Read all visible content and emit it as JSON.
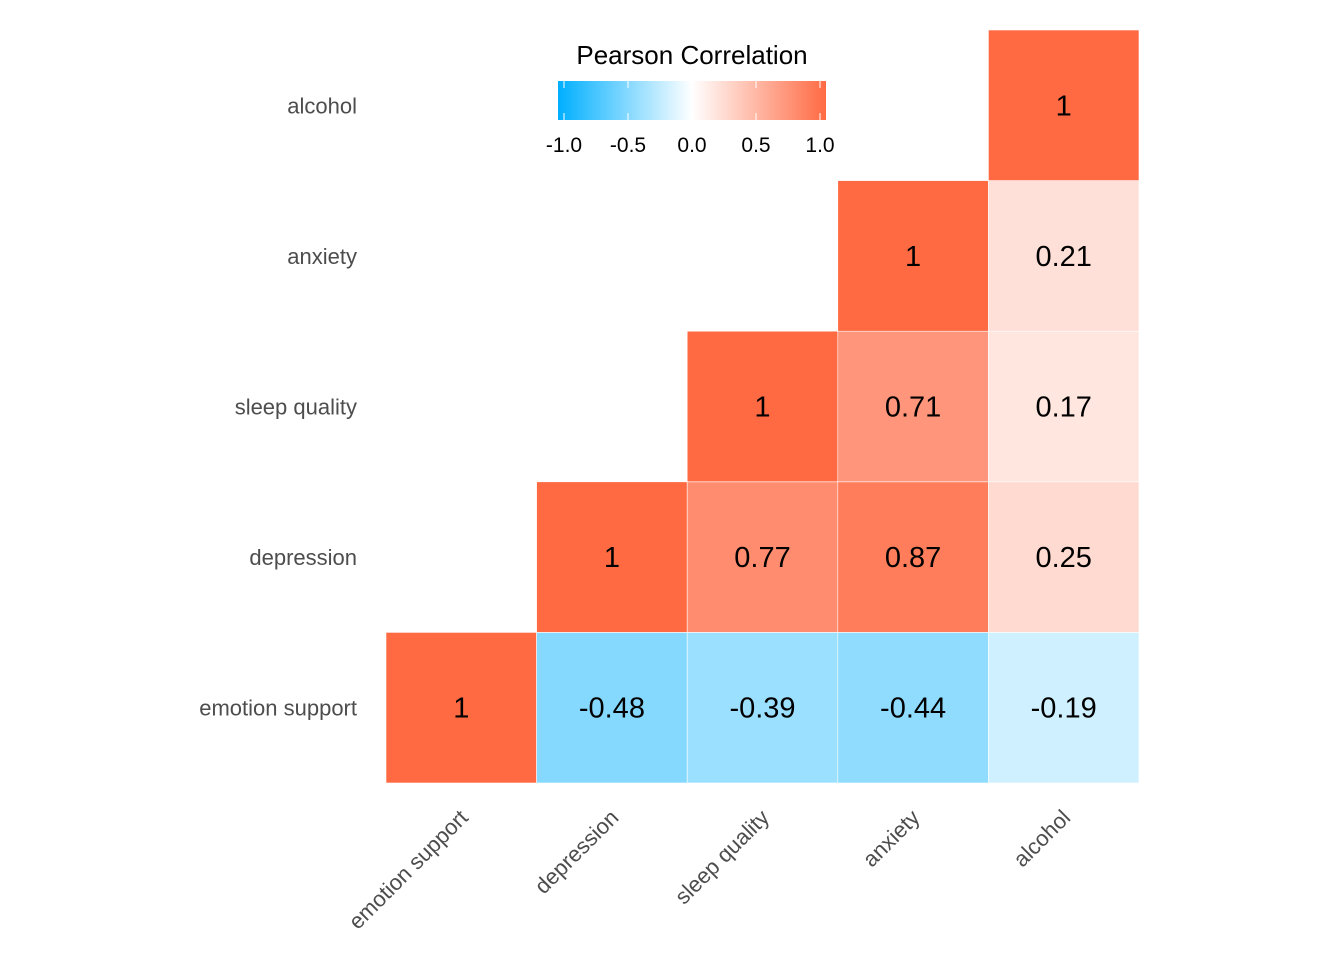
{
  "chart_data": {
    "type": "heatmap",
    "title": "",
    "variables": [
      "emotion support",
      "depression",
      "sleep quality",
      "anxiety",
      "alcohol"
    ],
    "matrix_triangle": "upper",
    "cells": [
      {
        "x": "emotion support",
        "y": "emotion support",
        "value": 1,
        "label": "1"
      },
      {
        "x": "depression",
        "y": "emotion support",
        "value": -0.48,
        "label": "-0.48"
      },
      {
        "x": "sleep quality",
        "y": "emotion support",
        "value": -0.39,
        "label": "-0.39"
      },
      {
        "x": "anxiety",
        "y": "emotion support",
        "value": -0.44,
        "label": "-0.44"
      },
      {
        "x": "alcohol",
        "y": "emotion support",
        "value": -0.19,
        "label": "-0.19"
      },
      {
        "x": "depression",
        "y": "depression",
        "value": 1,
        "label": "1"
      },
      {
        "x": "sleep quality",
        "y": "depression",
        "value": 0.77,
        "label": "0.77"
      },
      {
        "x": "anxiety",
        "y": "depression",
        "value": 0.87,
        "label": "0.87"
      },
      {
        "x": "alcohol",
        "y": "depression",
        "value": 0.25,
        "label": "0.25"
      },
      {
        "x": "sleep quality",
        "y": "sleep quality",
        "value": 1,
        "label": "1"
      },
      {
        "x": "anxiety",
        "y": "sleep quality",
        "value": 0.71,
        "label": "0.71"
      },
      {
        "x": "alcohol",
        "y": "sleep quality",
        "value": 0.17,
        "label": "0.17"
      },
      {
        "x": "anxiety",
        "y": "anxiety",
        "value": 1,
        "label": "1"
      },
      {
        "x": "alcohol",
        "y": "anxiety",
        "value": 0.21,
        "label": "0.21"
      },
      {
        "x": "alcohol",
        "y": "alcohol",
        "value": 1,
        "label": "1"
      }
    ],
    "legend": {
      "title": "Pearson Correlation",
      "placement": "top-center",
      "range": [
        -1,
        1
      ],
      "ticks": [
        "-1.0",
        "-0.5",
        "0.0",
        "0.5",
        "1.0"
      ],
      "tick_values": [
        -1,
        -0.5,
        0,
        0.5,
        1
      ]
    },
    "colors": {
      "low": "#00AFFF",
      "mid": "#FFFFFF",
      "high": "#FF6A43"
    },
    "grid": false
  }
}
